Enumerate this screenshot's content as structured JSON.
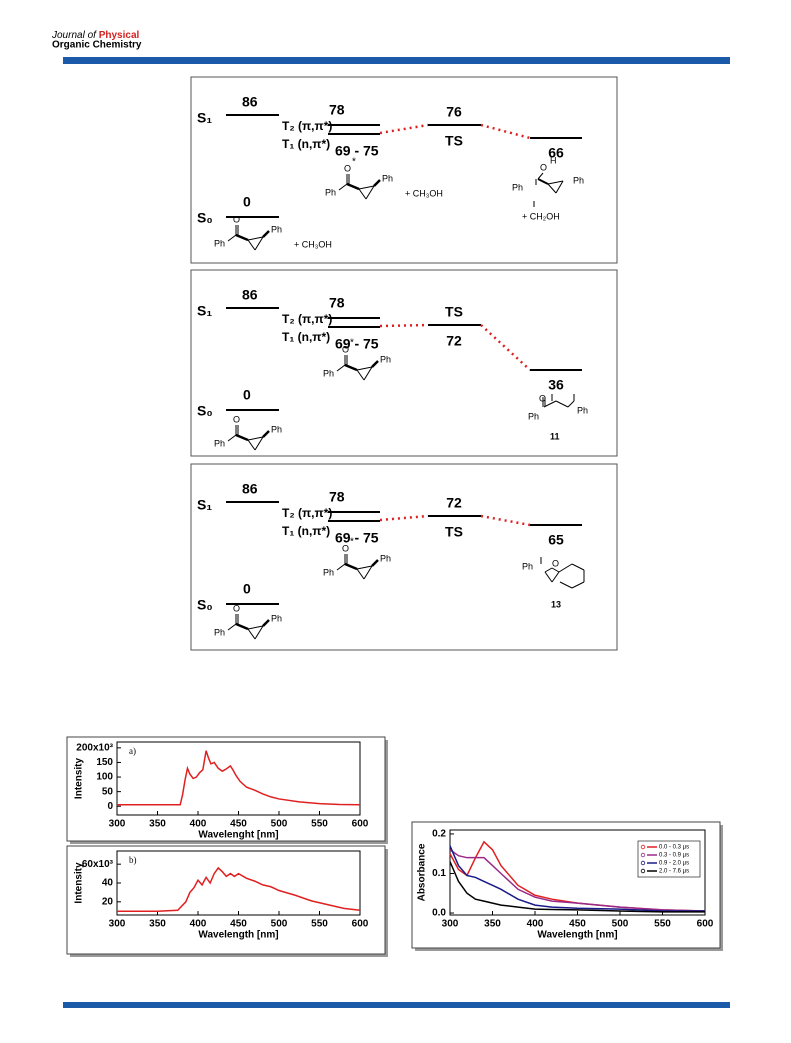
{
  "header": {
    "line1a": "Journal of",
    "line1b": "Physical",
    "line2": "Organic Chemistry"
  },
  "diagrams": [
    {
      "s1": "S₁",
      "s1_energy": "86",
      "t2": "T₂ (π,π*)",
      "t1": "T₁ (n,π*)",
      "t_top": "78",
      "t_bottom": "69 - 75",
      "ts_above": "76",
      "ts_below": "TS",
      "product_energy": "66",
      "s0": "S₀",
      "s0_energy": "0",
      "reactant": {
        "o": "O",
        "ph1": "Ph",
        "ph2": "Ph",
        "extra": "+ CH₃OH"
      },
      "excited": {
        "o": "O",
        "ph1": "Ph",
        "ph2": "Ph",
        "star": "*",
        "extra": "+ CH₃OH"
      },
      "product": {
        "labels": [
          "O",
          "H",
          "Ph",
          "Ph",
          "+ CH₂OH"
        ]
      }
    },
    {
      "s1": "S₁",
      "s1_energy": "86",
      "t2": "T₂ (π,π*)",
      "t1": "T₁ (n,π*)",
      "t_top": "78",
      "t_bottom": "69 - 75",
      "ts_above": "TS",
      "ts_below": "72",
      "product_energy": "36",
      "s0": "S₀",
      "s0_energy": "0",
      "reactant": {
        "o": "O",
        "ph1": "Ph",
        "ph2": "Ph"
      },
      "excited": {
        "o": "O",
        "ph1": "Ph",
        "ph2": "Ph",
        "star": "*"
      },
      "product": {
        "labels": [
          "O",
          "Ph",
          "Ph",
          "11"
        ]
      }
    },
    {
      "s1": "S₁",
      "s1_energy": "86",
      "t2": "T₂ (π,π*)",
      "t1": "T₁ (n,π*)",
      "t_top": "78",
      "t_bottom": "69 - 75",
      "ts_above": "72",
      "ts_below": "TS",
      "product_energy": "65",
      "s0": "S₀",
      "s0_energy": "0",
      "reactant": {
        "o": "O",
        "ph1": "Ph",
        "ph2": "Ph"
      },
      "excited": {
        "o": "O",
        "ph1": "Ph",
        "ph2": "Ph",
        "star": "*"
      },
      "product": {
        "labels": [
          "Ph",
          "O",
          "13"
        ]
      }
    }
  ],
  "chart_data": [
    {
      "type": "line",
      "panel_label": "a)",
      "ylabel": "Intensity",
      "xlabel": "Wavelenght [nm]",
      "color": "#e02020",
      "x": [
        300,
        350,
        378,
        381,
        384,
        387,
        390,
        394,
        398,
        402,
        406,
        410,
        413,
        416,
        420,
        425,
        430,
        435,
        440,
        443,
        447,
        452,
        460,
        470,
        480,
        490,
        500,
        525,
        550,
        575,
        600
      ],
      "values": [
        5,
        5,
        5,
        40,
        90,
        130,
        110,
        95,
        100,
        115,
        125,
        190,
        165,
        145,
        150,
        130,
        120,
        128,
        138,
        125,
        105,
        85,
        65,
        55,
        42,
        32,
        25,
        15,
        9,
        6,
        5
      ],
      "xlim": [
        300,
        600
      ],
      "xticks": [
        300,
        350,
        400,
        450,
        500,
        550,
        600
      ],
      "ylim": [
        -30,
        220
      ],
      "yticks": [
        0,
        50,
        100,
        150,
        {
          "value": 200,
          "label": "200x10³"
        }
      ]
    },
    {
      "type": "line",
      "panel_label": "b)",
      "ylabel": "Intensity",
      "xlabel": "Wavelength [nm]",
      "color": "#e02020",
      "x": [
        300,
        350,
        375,
        385,
        390,
        395,
        400,
        405,
        410,
        415,
        420,
        425,
        430,
        435,
        440,
        445,
        450,
        460,
        470,
        480,
        490,
        500,
        520,
        540,
        560,
        580,
        600
      ],
      "values": [
        10,
        10,
        11,
        20,
        30,
        35,
        43,
        38,
        46,
        40,
        50,
        56,
        52,
        47,
        50,
        47,
        50,
        45,
        42,
        38,
        36,
        32,
        27,
        21,
        17,
        13,
        11
      ],
      "xlim": [
        300,
        600
      ],
      "xticks": [
        300,
        350,
        400,
        450,
        500,
        550,
        600
      ],
      "ylim": [
        6,
        74
      ],
      "yticks": [
        20,
        40,
        {
          "value": 60,
          "label": "60x10³"
        }
      ]
    },
    {
      "type": "line",
      "ylabel": "Absorbance",
      "xlabel": "Wavelength [nm]",
      "legend": "upper right",
      "x": [
        300,
        310,
        320,
        330,
        340,
        350,
        360,
        380,
        400,
        420,
        450,
        500,
        550,
        600
      ],
      "series": [
        {
          "name": "0.0 - 0.3 µs",
          "color": "#e02020",
          "values": [
            0.15,
            0.11,
            0.095,
            0.14,
            0.18,
            0.16,
            0.12,
            0.07,
            0.045,
            0.035,
            0.025,
            0.015,
            0.008,
            0.005
          ]
        },
        {
          "name": "0.3 - 0.9 µs",
          "color": "#9a2a8a",
          "values": [
            0.16,
            0.145,
            0.14,
            0.14,
            0.14,
            0.12,
            0.1,
            0.06,
            0.04,
            0.03,
            0.025,
            0.015,
            0.008,
            0.005
          ]
        },
        {
          "name": "0.9 - 2.0 µs",
          "color": "#1a1a8a",
          "values": [
            0.17,
            0.12,
            0.095,
            0.09,
            0.08,
            0.07,
            0.06,
            0.035,
            0.02,
            0.015,
            0.012,
            0.01,
            0.005,
            0.005
          ]
        },
        {
          "name": "2.0 - 7.6 µs",
          "color": "#000000",
          "values": [
            0.13,
            0.08,
            0.05,
            0.035,
            0.03,
            0.025,
            0.02,
            0.015,
            0.01,
            0.009,
            0.008,
            0.005,
            0.003,
            0.003
          ]
        }
      ],
      "xlim": [
        300,
        600
      ],
      "xticks": [
        300,
        350,
        400,
        450,
        500,
        550,
        600
      ],
      "ylim": [
        -0.005,
        0.21
      ],
      "yticks": [
        {
          "value": 0,
          "label": "0.0"
        },
        0.1,
        0.2
      ]
    }
  ]
}
